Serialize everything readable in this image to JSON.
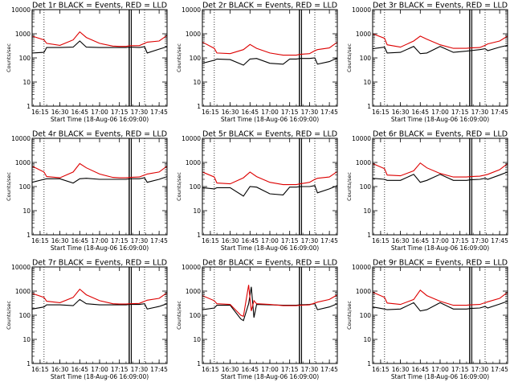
{
  "figure": {
    "x_tick_labels": [
      "16:15",
      "16:30",
      "16:45",
      "17:00",
      "17:15",
      "17:30",
      "17:45"
    ],
    "y_tick_labels": [
      "1",
      "10",
      "100",
      "1000",
      "10000"
    ],
    "x_axis_label": "Start Time (18-Aug-06 16:09:00)",
    "y_axis_label": "Counts/sec",
    "series_colors": {
      "events": "#000000",
      "lld": "#dd0000"
    }
  },
  "chart_data": [
    {
      "type": "line",
      "title": "Det 1r BLACK = Events, RED = LLD",
      "xlabel": "Start Time (18-Aug-06 16:09:00)",
      "ylabel": "Counts/sec",
      "y_scale": "log",
      "ylim": [
        1,
        10000
      ],
      "xlim": [
        "16:09",
        "17:51"
      ],
      "x": [
        "16:09",
        "16:18",
        "16:20",
        "16:30",
        "16:40",
        "16:45",
        "16:50",
        "17:00",
        "17:10",
        "17:15",
        "17:20",
        "17:23",
        "17:30",
        "17:34",
        "17:36",
        "17:45",
        "17:51"
      ],
      "series": [
        {
          "name": "Events",
          "values": [
            160,
            170,
            270,
            270,
            280,
            500,
            280,
            270,
            270,
            270,
            270,
            280,
            270,
            290,
            160,
            230,
            290
          ]
        },
        {
          "name": "LLD",
          "values": [
            800,
            560,
            400,
            330,
            560,
            1200,
            700,
            400,
            310,
            300,
            300,
            320,
            320,
            400,
            450,
            500,
            850
          ]
        }
      ],
      "vertical_lines": [
        {
          "x": "16:18",
          "style": "dotted"
        },
        {
          "x": "17:23",
          "style": "solid"
        },
        {
          "x": "17:34",
          "style": "dotted"
        }
      ]
    },
    {
      "type": "line",
      "title": "Det 2r BLACK = Events, RED = LLD",
      "xlabel": "Start Time (18-Aug-06 16:09:00)",
      "ylabel": "Counts/sec",
      "y_scale": "log",
      "ylim": [
        1,
        10000
      ],
      "xlim": [
        "16:09",
        "17:51"
      ],
      "x": [
        "16:09",
        "16:18",
        "16:20",
        "16:30",
        "16:40",
        "16:45",
        "16:50",
        "17:00",
        "17:10",
        "17:15",
        "17:20",
        "17:23",
        "17:30",
        "17:34",
        "17:36",
        "17:45",
        "17:51"
      ],
      "series": [
        {
          "name": "Events",
          "values": [
            60,
            80,
            90,
            85,
            50,
            90,
            95,
            60,
            55,
            90,
            90,
            95,
            95,
            100,
            55,
            70,
            100
          ]
        },
        {
          "name": "LLD",
          "values": [
            450,
            250,
            160,
            150,
            220,
            360,
            250,
            160,
            130,
            130,
            130,
            140,
            150,
            200,
            220,
            260,
            450
          ]
        }
      ],
      "vertical_lines": [
        {
          "x": "16:18",
          "style": "dotted"
        },
        {
          "x": "17:23",
          "style": "solid"
        },
        {
          "x": "17:34",
          "style": "dotted"
        }
      ]
    },
    {
      "type": "line",
      "title": "Det 3r BLACK = Events, RED = LLD",
      "xlabel": "Start Time (18-Aug-06 16:09:00)",
      "ylabel": "Counts/sec",
      "y_scale": "log",
      "ylim": [
        1,
        10000
      ],
      "xlim": [
        "16:09",
        "17:51"
      ],
      "x": [
        "16:09",
        "16:18",
        "16:20",
        "16:30",
        "16:40",
        "16:45",
        "16:50",
        "17:00",
        "17:10",
        "17:15",
        "17:20",
        "17:23",
        "17:30",
        "17:34",
        "17:36",
        "17:45",
        "17:51"
      ],
      "series": [
        {
          "name": "Events",
          "values": [
            240,
            280,
            160,
            170,
            300,
            150,
            160,
            300,
            170,
            180,
            190,
            200,
            220,
            240,
            200,
            280,
            330
          ]
        },
        {
          "name": "LLD",
          "values": [
            1000,
            650,
            350,
            280,
            500,
            800,
            600,
            350,
            250,
            250,
            250,
            260,
            270,
            330,
            380,
            500,
            800
          ]
        }
      ],
      "vertical_lines": [
        {
          "x": "16:18",
          "style": "dotted"
        },
        {
          "x": "17:23",
          "style": "solid"
        },
        {
          "x": "17:34",
          "style": "dotted"
        }
      ]
    },
    {
      "type": "line",
      "title": "Det 4r BLACK = Events, RED = LLD",
      "xlabel": "Start Time (18-Aug-06 16:09:00)",
      "ylabel": "Counts/sec",
      "y_scale": "log",
      "ylim": [
        1,
        10000
      ],
      "xlim": [
        "16:09",
        "17:51"
      ],
      "x": [
        "16:09",
        "16:18",
        "16:20",
        "16:30",
        "16:40",
        "16:45",
        "16:50",
        "17:00",
        "17:10",
        "17:15",
        "17:20",
        "17:23",
        "17:30",
        "17:34",
        "17:36",
        "17:45",
        "17:51"
      ],
      "series": [
        {
          "name": "Events",
          "values": [
            150,
            200,
            210,
            210,
            140,
            210,
            220,
            200,
            200,
            200,
            200,
            210,
            210,
            230,
            150,
            200,
            260
          ]
        },
        {
          "name": "LLD",
          "values": [
            700,
            400,
            260,
            230,
            400,
            900,
            600,
            330,
            240,
            230,
            230,
            240,
            250,
            300,
            330,
            400,
            700
          ]
        }
      ],
      "vertical_lines": [
        {
          "x": "16:18",
          "style": "dotted"
        },
        {
          "x": "17:23",
          "style": "solid"
        },
        {
          "x": "17:34",
          "style": "dotted"
        }
      ]
    },
    {
      "type": "line",
      "title": "Det 5r BLACK = Events, RED = LLD",
      "xlabel": "Start Time (18-Aug-06 16:09:00)",
      "ylabel": "Counts/sec",
      "y_scale": "log",
      "ylim": [
        1,
        10000
      ],
      "xlim": [
        "16:09",
        "17:51"
      ],
      "x": [
        "16:09",
        "16:18",
        "16:20",
        "16:30",
        "16:40",
        "16:45",
        "16:50",
        "17:00",
        "17:10",
        "17:15",
        "17:20",
        "17:23",
        "17:30",
        "17:34",
        "17:36",
        "17:45",
        "17:51"
      ],
      "series": [
        {
          "name": "Events",
          "values": [
            90,
            80,
            90,
            90,
            40,
            100,
            95,
            50,
            45,
            95,
            95,
            100,
            100,
            110,
            55,
            80,
            110
          ]
        },
        {
          "name": "LLD",
          "values": [
            400,
            250,
            140,
            130,
            230,
            400,
            260,
            150,
            120,
            120,
            120,
            130,
            150,
            200,
            220,
            250,
            420
          ]
        }
      ],
      "vertical_lines": [
        {
          "x": "16:18",
          "style": "dotted"
        },
        {
          "x": "17:23",
          "style": "solid"
        },
        {
          "x": "17:34",
          "style": "dotted"
        }
      ]
    },
    {
      "type": "line",
      "title": "Det 6r BLACK = Events, RED = LLD",
      "xlabel": "Start Time (18-Aug-06 16:09:00)",
      "ylabel": "Counts/sec",
      "y_scale": "log",
      "ylim": [
        1,
        10000
      ],
      "xlim": [
        "16:09",
        "17:51"
      ],
      "x": [
        "16:09",
        "16:18",
        "16:20",
        "16:30",
        "16:40",
        "16:45",
        "16:50",
        "17:00",
        "17:10",
        "17:15",
        "17:20",
        "17:23",
        "17:30",
        "17:34",
        "17:36",
        "17:45",
        "17:51"
      ],
      "series": [
        {
          "name": "Events",
          "values": [
            220,
            200,
            180,
            180,
            320,
            150,
            180,
            320,
            180,
            180,
            180,
            190,
            200,
            220,
            200,
            300,
            400
          ]
        },
        {
          "name": "LLD",
          "values": [
            900,
            550,
            300,
            280,
            450,
            950,
            600,
            350,
            250,
            250,
            250,
            260,
            270,
            300,
            320,
            500,
            900
          ]
        }
      ],
      "vertical_lines": [
        {
          "x": "16:18",
          "style": "dotted"
        },
        {
          "x": "17:23",
          "style": "solid"
        },
        {
          "x": "17:34",
          "style": "dotted"
        }
      ]
    },
    {
      "type": "line",
      "title": "Det 7r BLACK = Events, RED = LLD",
      "xlabel": "Start Time (18-Aug-06 16:09:00)",
      "ylabel": "Counts/sec",
      "y_scale": "log",
      "ylim": [
        1,
        10000
      ],
      "xlim": [
        "16:09",
        "17:51"
      ],
      "x": [
        "16:09",
        "16:18",
        "16:20",
        "16:30",
        "16:40",
        "16:45",
        "16:50",
        "17:00",
        "17:10",
        "17:15",
        "17:20",
        "17:23",
        "17:30",
        "17:34",
        "17:36",
        "17:45",
        "17:51"
      ],
      "series": [
        {
          "name": "Events",
          "values": [
            180,
            220,
            270,
            270,
            250,
            450,
            300,
            270,
            270,
            270,
            270,
            280,
            280,
            300,
            180,
            230,
            300
          ]
        },
        {
          "name": "LLD",
          "values": [
            800,
            550,
            380,
            330,
            550,
            1200,
            700,
            400,
            300,
            290,
            290,
            300,
            310,
            380,
            420,
            500,
            850
          ]
        }
      ],
      "vertical_lines": [
        {
          "x": "16:18",
          "style": "dotted"
        },
        {
          "x": "17:23",
          "style": "solid"
        },
        {
          "x": "17:34",
          "style": "dotted"
        }
      ]
    },
    {
      "type": "line",
      "title": "Det 8r BLACK = Events, RED = LLD",
      "xlabel": "Start Time (18-Aug-06 16:09:00)",
      "ylabel": "Counts/sec",
      "y_scale": "log",
      "ylim": [
        1,
        10000
      ],
      "xlim": [
        "16:09",
        "17:51"
      ],
      "x": [
        "16:09",
        "16:18",
        "16:20",
        "16:30",
        "16:38",
        "16:40",
        "16:44",
        "16:46",
        "16:48",
        "16:50",
        "17:00",
        "17:10",
        "17:15",
        "17:20",
        "17:23",
        "17:30",
        "17:34",
        "17:36",
        "17:45",
        "17:51"
      ],
      "series": [
        {
          "name": "Events",
          "values": [
            170,
            200,
            260,
            260,
            70,
            60,
            300,
            1500,
            80,
            280,
            270,
            260,
            260,
            260,
            270,
            280,
            300,
            170,
            220,
            300
          ]
        },
        {
          "name": "LLD",
          "values": [
            650,
            400,
            300,
            280,
            100,
            90,
            1800,
            150,
            400,
            300,
            280,
            250,
            250,
            250,
            260,
            270,
            320,
            350,
            450,
            700
          ]
        }
      ],
      "vertical_lines": [
        {
          "x": "16:18",
          "style": "dotted"
        },
        {
          "x": "17:23",
          "style": "solid"
        },
        {
          "x": "17:34",
          "style": "dotted"
        }
      ]
    },
    {
      "type": "line",
      "title": "Det 9r BLACK = Events, RED = LLD",
      "xlabel": "Start Time (18-Aug-06 16:09:00)",
      "ylabel": "Counts/sec",
      "y_scale": "log",
      "ylim": [
        1,
        10000
      ],
      "xlim": [
        "16:09",
        "17:51"
      ],
      "x": [
        "16:09",
        "16:18",
        "16:20",
        "16:30",
        "16:40",
        "16:45",
        "16:50",
        "17:00",
        "17:10",
        "17:15",
        "17:20",
        "17:23",
        "17:30",
        "17:34",
        "17:36",
        "17:45",
        "17:51"
      ],
      "series": [
        {
          "name": "Events",
          "values": [
            220,
            180,
            170,
            180,
            330,
            150,
            170,
            330,
            180,
            180,
            180,
            190,
            200,
            230,
            200,
            290,
            380
          ]
        },
        {
          "name": "LLD",
          "values": [
            900,
            550,
            320,
            280,
            450,
            1100,
            650,
            380,
            260,
            260,
            260,
            270,
            280,
            330,
            360,
            500,
            900
          ]
        }
      ],
      "vertical_lines": [
        {
          "x": "16:18",
          "style": "dotted"
        },
        {
          "x": "17:23",
          "style": "solid"
        },
        {
          "x": "17:34",
          "style": "dotted"
        }
      ]
    }
  ]
}
